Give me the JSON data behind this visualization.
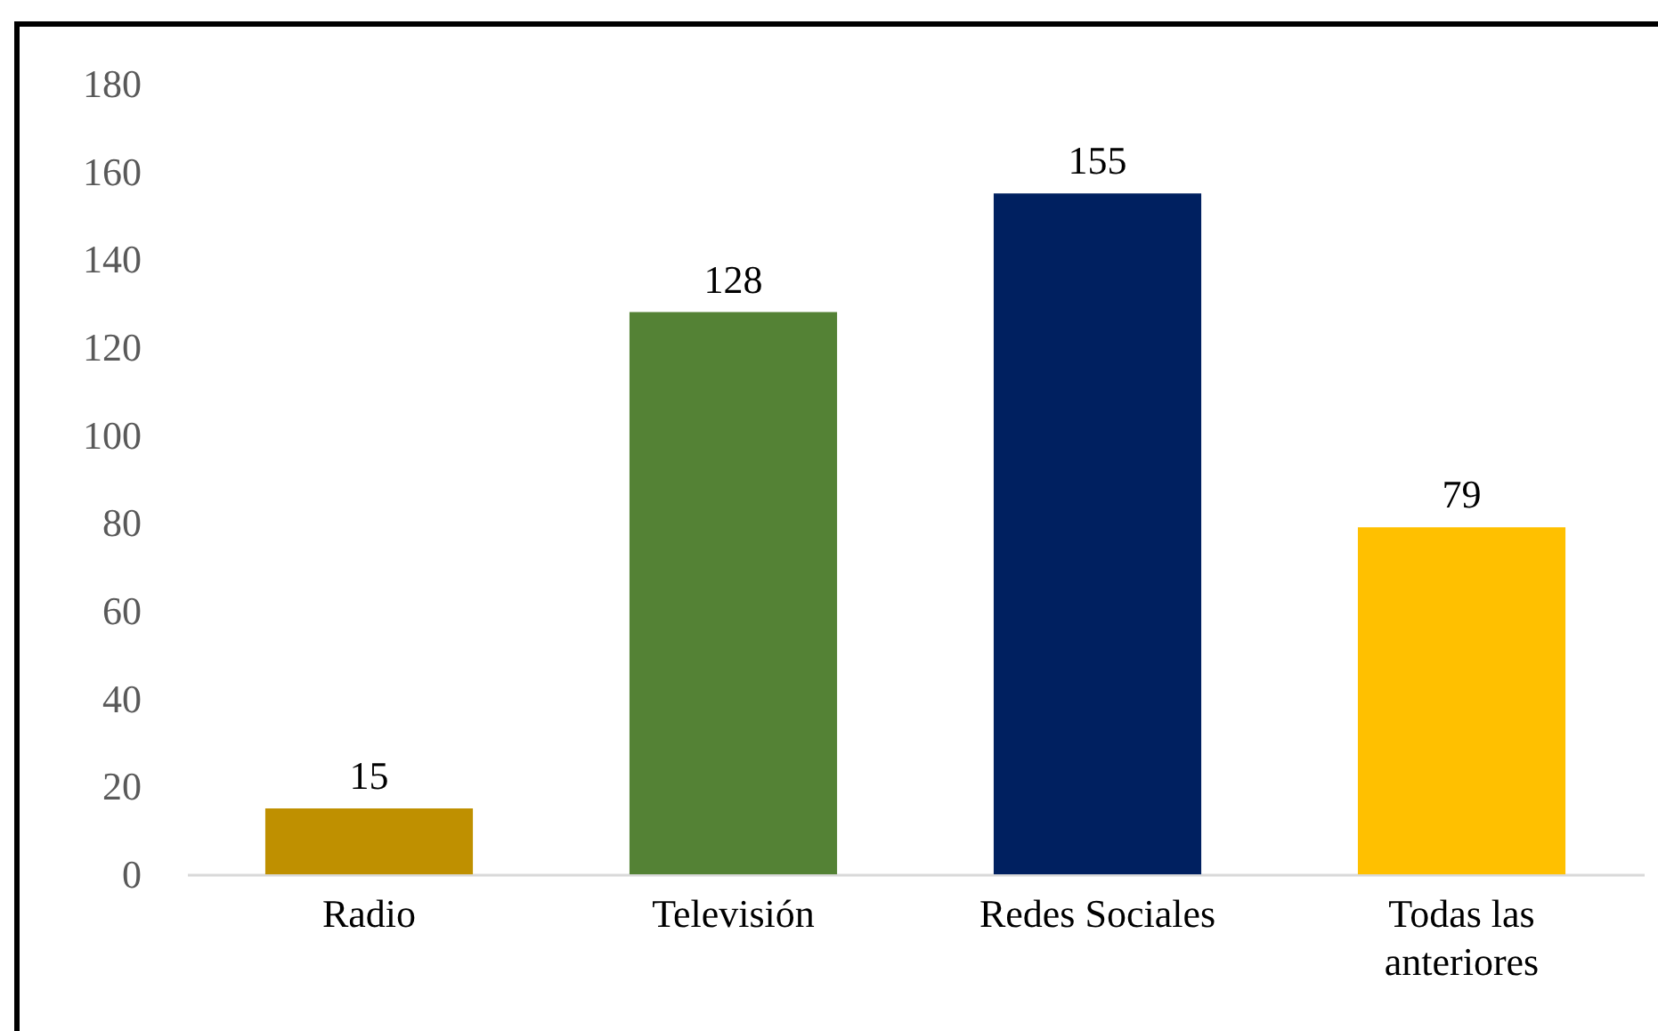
{
  "chart_data": {
    "type": "bar",
    "categories": [
      "Radio",
      "Televisión",
      "Redes Sociales",
      "Todas las anteriores"
    ],
    "values": [
      15,
      128,
      155,
      79
    ],
    "colors": [
      "#bf9000",
      "#548235",
      "#002060",
      "#ffc000"
    ],
    "ylim": [
      0,
      180
    ],
    "yticks": [
      0,
      20,
      40,
      60,
      80,
      100,
      120,
      140,
      160,
      180
    ],
    "grid": false,
    "data_labels": true
  }
}
